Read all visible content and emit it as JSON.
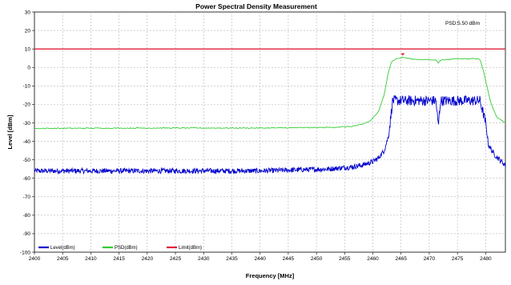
{
  "chart_data": {
    "type": "line",
    "title": "Power Spectral Density Measurement",
    "xlabel": "Frequency [MHz]",
    "ylabel": "Level [dBm]",
    "xlim": [
      2400,
      2483.5
    ],
    "ylim": [
      -100,
      30
    ],
    "x_ticks": [
      2400,
      2405,
      2410,
      2415,
      2420,
      2425,
      2430,
      2435,
      2440,
      2445,
      2450,
      2455,
      2460,
      2465,
      2470,
      2475,
      2480
    ],
    "y_ticks": [
      30,
      20,
      10,
      0,
      -10,
      -20,
      -30,
      -40,
      -50,
      -60,
      -70,
      -80,
      -90,
      -100
    ],
    "grid": true,
    "legend_position": "bottom-left",
    "annotation": "PSD:5.50 dBm",
    "marker": {
      "x": 2465.3,
      "y": 5.5
    },
    "series": [
      {
        "name": "Level(dBm)",
        "color": "#0000cc",
        "x": [
          2400,
          2420,
          2440,
          2452,
          2456,
          2458,
          2460,
          2461,
          2462,
          2462.8,
          2463.5,
          2470,
          2471.2,
          2471.6,
          2472,
          2479,
          2480,
          2480.5,
          2481.5,
          2482.5,
          2483.5
        ],
        "values": [
          -56,
          -56,
          -56,
          -55,
          -54,
          -53,
          -51,
          -49,
          -45,
          -37,
          -18,
          -18,
          -18,
          -32,
          -18,
          -18,
          -30,
          -42,
          -47,
          -50,
          -53
        ]
      },
      {
        "name": "PSD(dBm)",
        "color": "#33cc33",
        "x": [
          2400,
          2420,
          2440,
          2452,
          2456,
          2458,
          2459.5,
          2461,
          2462,
          2462.7,
          2463.3,
          2464,
          2465.3,
          2467,
          2471.2,
          2471.6,
          2472,
          2475,
          2478,
          2479,
          2479.7,
          2480.2,
          2481,
          2482,
          2483.5
        ],
        "values": [
          -33,
          -32.8,
          -32.8,
          -32.5,
          -32,
          -31,
          -29,
          -24,
          -15,
          -3,
          3,
          4.5,
          5.5,
          4.5,
          4,
          2.5,
          4,
          4.7,
          4.8,
          4.5,
          -3,
          -10,
          -20,
          -27,
          -30
        ]
      },
      {
        "name": "Limit(dBm)",
        "color": "#e0203a",
        "x": [
          2400,
          2483.5
        ],
        "values": [
          10,
          10
        ]
      }
    ]
  }
}
